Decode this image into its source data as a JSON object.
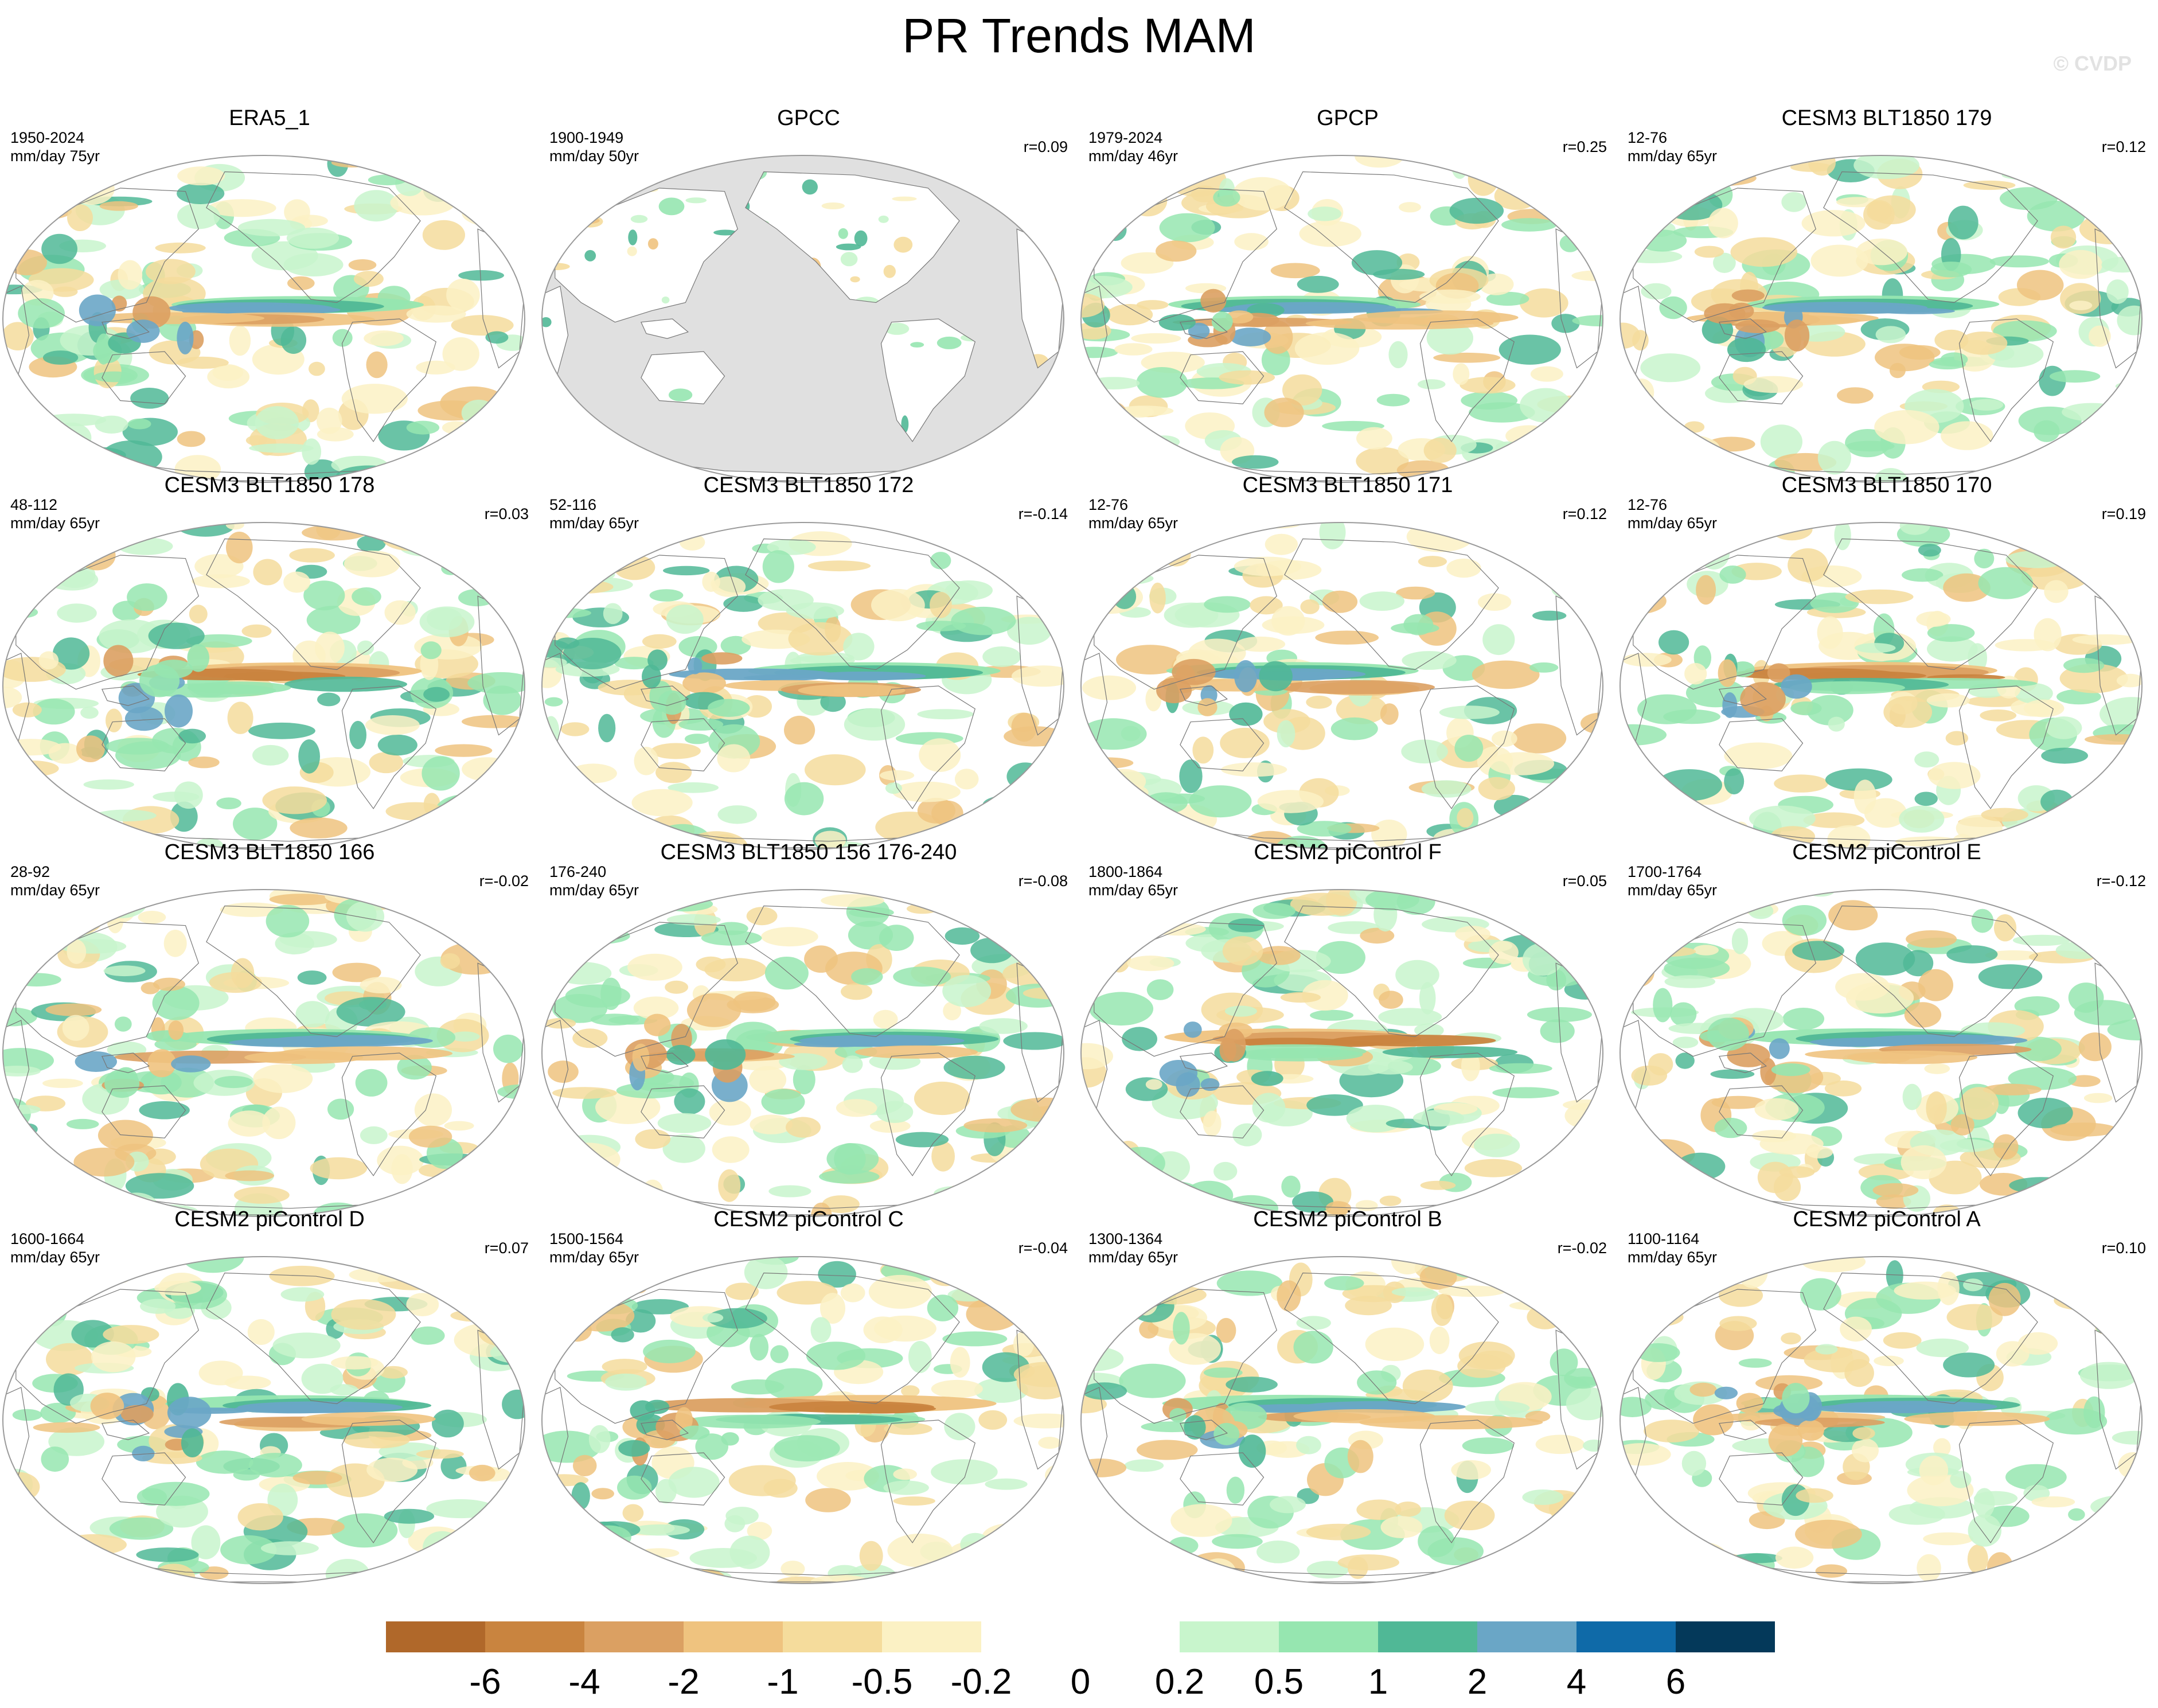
{
  "figure_title": "PR Trends MAM",
  "watermark": "© CVDP",
  "colors": {
    "land": "#e0e0e0",
    "ocean": "#ffffff",
    "coast": "#777777",
    "frame": "#9a9a9a"
  },
  "chart_data": {
    "type": "heatmap",
    "title": "PR Trends MAM",
    "projection": "Robinson, Pacific-centred",
    "panels": [
      {
        "title": "ERA5_1",
        "period": "1950-2024",
        "units": "mm/day 75yr",
        "r": "",
        "layout": "full"
      },
      {
        "title": "GPCC",
        "period": "1900-1949",
        "units": "mm/day 50yr",
        "r": "r=0.09",
        "layout": "land"
      },
      {
        "title": "GPCP",
        "period": "1979-2024",
        "units": "mm/day 46yr",
        "r": "r=0.25",
        "layout": "full"
      },
      {
        "title": "CESM3 BLT1850 179",
        "period": "12-76",
        "units": "mm/day 65yr",
        "r": "r=0.12",
        "layout": "full"
      },
      {
        "title": "CESM3 BLT1850 178",
        "period": "48-112",
        "units": "mm/day 65yr",
        "r": "r=0.03",
        "layout": "full"
      },
      {
        "title": "CESM3 BLT1850 172",
        "period": "52-116",
        "units": "mm/day 65yr",
        "r": "r=-0.14",
        "layout": "full"
      },
      {
        "title": "CESM3 BLT1850 171",
        "period": "12-76",
        "units": "mm/day 65yr",
        "r": "r=0.12",
        "layout": "full"
      },
      {
        "title": "CESM3 BLT1850 170",
        "period": "12-76",
        "units": "mm/day 65yr",
        "r": "r=0.19",
        "layout": "full"
      },
      {
        "title": "CESM3 BLT1850 166",
        "period": "28-92",
        "units": "mm/day 65yr",
        "r": "r=-0.02",
        "layout": "full"
      },
      {
        "title": "CESM3 BLT1850 156 176-240",
        "period": "176-240",
        "units": "mm/day 65yr",
        "r": "r=-0.08",
        "layout": "full"
      },
      {
        "title": "CESM2 piControl F",
        "period": "1800-1864",
        "units": "mm/day 65yr",
        "r": "r=0.05",
        "layout": "full"
      },
      {
        "title": "CESM2 piControl E",
        "period": "1700-1764",
        "units": "mm/day 65yr",
        "r": "r=-0.12",
        "layout": "full"
      },
      {
        "title": "CESM2 piControl D",
        "period": "1600-1664",
        "units": "mm/day 65yr",
        "r": "r=0.07",
        "layout": "full"
      },
      {
        "title": "CESM2 piControl C",
        "period": "1500-1564",
        "units": "mm/day 65yr",
        "r": "r=-0.04",
        "layout": "full"
      },
      {
        "title": "CESM2 piControl B",
        "period": "1300-1364",
        "units": "mm/day 65yr",
        "r": "r=-0.02",
        "layout": "full"
      },
      {
        "title": "CESM2 piControl A",
        "period": "1100-1164",
        "units": "mm/day 65yr",
        "r": "r=0.10",
        "layout": "full"
      }
    ],
    "colorbar": {
      "labels": [
        "-6",
        "-4",
        "-2",
        "-1",
        "-0.5",
        "-0.2",
        "0",
        "0.2",
        "0.5",
        "1",
        "2",
        "4",
        "6"
      ],
      "colors": [
        "#b0682a",
        "#c9843f",
        "#dba062",
        "#efc37f",
        "#f5dc9c",
        "#fbf1c4",
        "#ffffff",
        "#ffffff",
        "#c8f5cc",
        "#96e6b0",
        "#50b896",
        "#6aa6c6",
        "#0f6aa8",
        "#04395a"
      ]
    }
  }
}
